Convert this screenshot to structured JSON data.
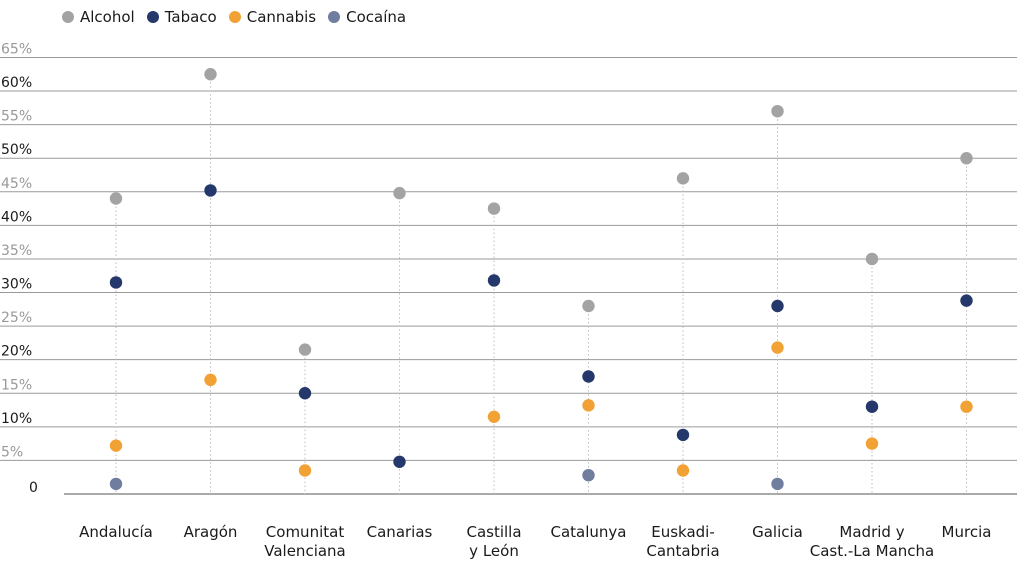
{
  "chart_data": {
    "type": "scatter",
    "categories": [
      [
        "Andalucía"
      ],
      [
        "Aragón"
      ],
      [
        "Comunitat",
        "Valenciana"
      ],
      [
        "Canarias"
      ],
      [
        "Castilla",
        "y León"
      ],
      [
        "Catalunya"
      ],
      [
        "Euskadi-",
        "Cantabria"
      ],
      [
        "Galicia"
      ],
      [
        "Madrid y",
        "Cast.-La Mancha"
      ],
      [
        "Murcia"
      ]
    ],
    "y_ticks": [
      "0",
      "5%",
      "10%",
      "15%",
      "20%",
      "25%",
      "30%",
      "35%",
      "40%",
      "45%",
      "50%",
      "55%",
      "60%",
      "65%"
    ],
    "ylim": [
      0,
      65
    ],
    "grid": true,
    "legend_position": "top-left",
    "series": [
      {
        "name": "Alcohol",
        "color": "#a3a3a3",
        "values": [
          44,
          62.5,
          21.5,
          44.8,
          42.5,
          28,
          47,
          57,
          35,
          50
        ]
      },
      {
        "name": "Tabaco",
        "color": "#25386b",
        "values": [
          31.5,
          45.2,
          15,
          null,
          31.8,
          17.5,
          8.8,
          28,
          13,
          28.8
        ]
      },
      {
        "name": "Cannabis",
        "color": "#f2a234",
        "values": [
          7.2,
          17,
          3.5,
          null,
          11.5,
          13.2,
          3.5,
          21.8,
          7.5,
          13
        ]
      },
      {
        "name": "Cocaína",
        "color": "#6f7d9e",
        "values": [
          1.5,
          null,
          null,
          null,
          null,
          2.8,
          null,
          1.5,
          null,
          null
        ]
      },
      {
        "name": "",
        "color": "#25386b",
        "values": [
          null,
          null,
          null,
          4.8,
          null,
          null,
          null,
          null,
          null,
          null
        ]
      }
    ]
  }
}
